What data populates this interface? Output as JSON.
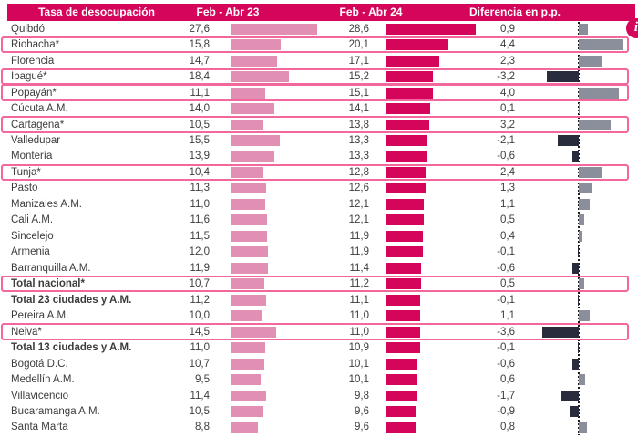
{
  "header": {
    "col_city": "Tasa de desocupación",
    "col_23": "Feb - Abr 23",
    "col_24": "Feb - Abr 24",
    "col_diff": "Diferencia en p.p."
  },
  "info_badge": {
    "label": "i"
  },
  "colors": {
    "magenta": "#D5055C",
    "pink_bar": "#E28FB4",
    "diff_positive": "#8B8E9B",
    "diff_negative": "#282C3C",
    "highlight_border": "#F4679D",
    "text": "#3C3C3C"
  },
  "chart_data": {
    "type": "table",
    "title": "Tasa de desocupación",
    "columns": [
      "Tasa de desocupación",
      "Feb - Abr 23",
      "Feb - Abr 24",
      "Diferencia en p.p."
    ],
    "bar_series": [
      "Feb - Abr 23",
      "Feb - Abr 24",
      "Diferencia en p.p."
    ],
    "value_axis_hint": {
      "feb_abr_bars_scale": "0 to ~29",
      "diff_bars_range": [
        -3.6,
        4.4
      ],
      "zero_line": "dashed vertical"
    },
    "rows": [
      {
        "name": "Quibdó",
        "feb_abr_23": 27.6,
        "feb_abr_24": 28.6,
        "diff": 0.9,
        "highlight": false,
        "bold": false
      },
      {
        "name": "Riohacha*",
        "feb_abr_23": 15.8,
        "feb_abr_24": 20.1,
        "diff": 4.4,
        "highlight": true,
        "bold": false
      },
      {
        "name": "Florencia",
        "feb_abr_23": 14.7,
        "feb_abr_24": 17.1,
        "diff": 2.3,
        "highlight": false,
        "bold": false
      },
      {
        "name": "Ibagué*",
        "feb_abr_23": 18.4,
        "feb_abr_24": 15.2,
        "diff": -3.2,
        "highlight": true,
        "bold": false
      },
      {
        "name": "Popayán*",
        "feb_abr_23": 11.1,
        "feb_abr_24": 15.1,
        "diff": 4.0,
        "highlight": true,
        "bold": false
      },
      {
        "name": "Cúcuta A.M.",
        "feb_abr_23": 14.0,
        "feb_abr_24": 14.1,
        "diff": 0.1,
        "highlight": false,
        "bold": false
      },
      {
        "name": "Cartagena*",
        "feb_abr_23": 10.5,
        "feb_abr_24": 13.8,
        "diff": 3.2,
        "highlight": true,
        "bold": false
      },
      {
        "name": "Valledupar",
        "feb_abr_23": 15.5,
        "feb_abr_24": 13.3,
        "diff": -2.1,
        "highlight": false,
        "bold": false
      },
      {
        "name": "Montería",
        "feb_abr_23": 13.9,
        "feb_abr_24": 13.3,
        "diff": -0.6,
        "highlight": false,
        "bold": false
      },
      {
        "name": "Tunja*",
        "feb_abr_23": 10.4,
        "feb_abr_24": 12.8,
        "diff": 2.4,
        "highlight": true,
        "bold": false
      },
      {
        "name": "Pasto",
        "feb_abr_23": 11.3,
        "feb_abr_24": 12.6,
        "diff": 1.3,
        "highlight": false,
        "bold": false
      },
      {
        "name": "Manizales A.M.",
        "feb_abr_23": 11.0,
        "feb_abr_24": 12.1,
        "diff": 1.1,
        "highlight": false,
        "bold": false
      },
      {
        "name": "Cali A.M.",
        "feb_abr_23": 11.6,
        "feb_abr_24": 12.1,
        "diff": 0.5,
        "highlight": false,
        "bold": false
      },
      {
        "name": "Sincelejo",
        "feb_abr_23": 11.5,
        "feb_abr_24": 11.9,
        "diff": 0.4,
        "highlight": false,
        "bold": false
      },
      {
        "name": "Armenia",
        "feb_abr_23": 12.0,
        "feb_abr_24": 11.9,
        "diff": -0.1,
        "highlight": false,
        "bold": false
      },
      {
        "name": "Barranquilla A.M.",
        "feb_abr_23": 11.9,
        "feb_abr_24": 11.4,
        "diff": -0.6,
        "highlight": false,
        "bold": false
      },
      {
        "name": "Total nacional*",
        "feb_abr_23": 10.7,
        "feb_abr_24": 11.2,
        "diff": 0.5,
        "highlight": true,
        "bold": true
      },
      {
        "name": "Total 23 ciudades y A.M.",
        "feb_abr_23": 11.2,
        "feb_abr_24": 11.1,
        "diff": -0.1,
        "highlight": false,
        "bold": true
      },
      {
        "name": "Pereira A.M.",
        "feb_abr_23": 10.0,
        "feb_abr_24": 11.0,
        "diff": 1.1,
        "highlight": false,
        "bold": false
      },
      {
        "name": "Neiva*",
        "feb_abr_23": 14.5,
        "feb_abr_24": 11.0,
        "diff": -3.6,
        "highlight": true,
        "bold": false
      },
      {
        "name": "Total 13 ciudades y A.M.",
        "feb_abr_23": 11.0,
        "feb_abr_24": 10.9,
        "diff": -0.1,
        "highlight": false,
        "bold": true
      },
      {
        "name": "Bogotá D.C.",
        "feb_abr_23": 10.7,
        "feb_abr_24": 10.1,
        "diff": -0.6,
        "highlight": false,
        "bold": false
      },
      {
        "name": "Medellín A.M.",
        "feb_abr_23": 9.5,
        "feb_abr_24": 10.1,
        "diff": 0.6,
        "highlight": false,
        "bold": false
      },
      {
        "name": "Villavicencio",
        "feb_abr_23": 11.4,
        "feb_abr_24": 9.8,
        "diff": -1.7,
        "highlight": false,
        "bold": false
      },
      {
        "name": "Bucaramanga A.M.",
        "feb_abr_23": 10.5,
        "feb_abr_24": 9.6,
        "diff": -0.9,
        "highlight": false,
        "bold": false
      },
      {
        "name": "Santa Marta",
        "feb_abr_23": 8.8,
        "feb_abr_24": 9.6,
        "diff": 0.8,
        "highlight": false,
        "bold": false
      }
    ]
  }
}
